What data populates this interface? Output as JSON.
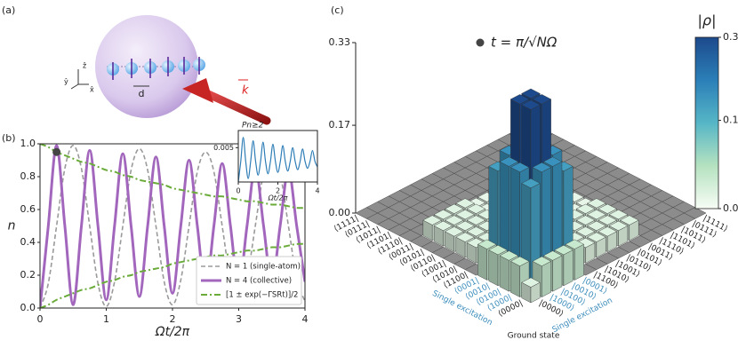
{
  "diagram": {
    "panel_label": "(a)",
    "spacing_label": "d",
    "wavevector_label": "k",
    "axis_labels": [
      "ẑ",
      "ŷ",
      "x̂"
    ]
  },
  "chart_data": [
    {
      "type": "line",
      "panel_label": "(b)",
      "xlabel": "Ωt/2π",
      "ylabel": "n",
      "xlim": [
        0,
        4
      ],
      "ylim": [
        0,
        1
      ],
      "xticks": [
        0,
        1,
        2,
        3,
        4
      ],
      "yticks": [
        {
          "value": 0,
          "label": "0.0"
        },
        {
          "value": 0.2,
          "label": "0.2"
        },
        {
          "value": 0.4,
          "label": "0.4"
        },
        {
          "value": 0.6,
          "label": "0.6"
        },
        {
          "value": 0.8,
          "label": "0.8"
        },
        {
          "value": 1,
          "label": "1.0"
        }
      ],
      "legend": "lower right",
      "x": [
        0,
        0.125,
        0.25,
        0.375,
        0.5,
        0.625,
        0.75,
        0.875,
        1,
        1.125,
        1.25,
        1.375,
        1.5,
        1.625,
        1.75,
        1.875,
        2,
        2.125,
        2.25,
        2.375,
        2.5,
        2.625,
        2.75,
        2.875,
        3,
        3.125,
        3.25,
        3.375,
        3.5,
        3.625,
        3.75,
        3.875,
        4
      ],
      "series": [
        {
          "name": "N = 1 (single-atom)",
          "color": "#9a9a9a",
          "style": "dashed",
          "width": 1.6,
          "values": [
            0,
            0.15,
            0.5,
            0.85,
            0.99,
            0.85,
            0.5,
            0.15,
            0.01,
            0.16,
            0.5,
            0.84,
            0.97,
            0.84,
            0.5,
            0.16,
            0.02,
            0.17,
            0.5,
            0.83,
            0.95,
            0.83,
            0.5,
            0.17,
            0.03,
            0.18,
            0.5,
            0.82,
            0.93,
            0.82,
            0.5,
            0.18,
            0.04
          ]
        },
        {
          "name": "N = 4 (collective)",
          "color": "#a266bd",
          "style": "solid",
          "width": 3,
          "values": [
            0,
            0.5,
            0.99,
            0.5,
            0.02,
            0.5,
            0.96,
            0.5,
            0.05,
            0.5,
            0.94,
            0.5,
            0.07,
            0.5,
            0.92,
            0.5,
            0.09,
            0.5,
            0.9,
            0.5,
            0.11,
            0.5,
            0.88,
            0.5,
            0.13,
            0.5,
            0.86,
            0.5,
            0.15,
            0.5,
            0.84,
            0.5,
            0.16
          ]
        },
        {
          "name": "[1 ± exp(−ΓSRt)]/2",
          "color": "#6aab3a",
          "style": "dashdot",
          "width": 2,
          "values": [
            1,
            0.98,
            0.95,
            0.93,
            0.91,
            0.89,
            0.88,
            0.86,
            0.84,
            0.83,
            0.81,
            0.8,
            0.78,
            0.77,
            0.76,
            0.75,
            0.73,
            0.72,
            0.71,
            0.7,
            0.69,
            0.68,
            0.68,
            0.67,
            0.66,
            0.65,
            0.65,
            0.64,
            0.63,
            0.63,
            0.62,
            0.61,
            0.61
          ],
          "lower_values": [
            0,
            0.02,
            0.05,
            0.07,
            0.09,
            0.11,
            0.12,
            0.14,
            0.16,
            0.17,
            0.19,
            0.2,
            0.22,
            0.23,
            0.24,
            0.25,
            0.27,
            0.28,
            0.29,
            0.3,
            0.31,
            0.32,
            0.32,
            0.33,
            0.34,
            0.35,
            0.35,
            0.36,
            0.37,
            0.37,
            0.38,
            0.39,
            0.39
          ]
        }
      ],
      "marker": {
        "x": 0.25,
        "y": 0.95,
        "color": "#444444"
      }
    },
    {
      "type": "line",
      "title": "Pn≥2",
      "xlabel": "Ωt/2π",
      "xlim": [
        0,
        4
      ],
      "ylim": [
        0,
        0.0075
      ],
      "xticks": [
        0,
        2,
        4
      ],
      "yticks": [
        0.005
      ],
      "x": [
        0,
        0.125,
        0.25,
        0.375,
        0.5,
        0.625,
        0.75,
        0.875,
        1,
        1.125,
        1.25,
        1.375,
        1.5,
        1.625,
        1.75,
        1.875,
        2,
        2.125,
        2.25,
        2.375,
        2.5,
        2.625,
        2.75,
        2.875,
        3,
        3.125,
        3.25,
        3.375,
        3.5,
        3.625,
        3.75,
        3.875,
        4
      ],
      "series": [
        {
          "color": "#2e7db6",
          "style": "solid",
          "width": 1.2,
          "values": [
            0,
            0.003,
            0.0065,
            0.003,
            0.0005,
            0.003,
            0.006,
            0.003,
            0.001,
            0.003,
            0.0058,
            0.003,
            0.0012,
            0.003,
            0.0055,
            0.003,
            0.0014,
            0.003,
            0.0053,
            0.003,
            0.0016,
            0.003,
            0.005,
            0.003,
            0.0018,
            0.003,
            0.0048,
            0.003,
            0.002,
            0.003,
            0.0046,
            0.003,
            0.0022
          ]
        }
      ]
    },
    {
      "type": "bar3d",
      "panel_label": "(c)",
      "title": "t = π/√NΩ",
      "row_labels": [
        "⟨0000|",
        "⟨1000|",
        "⟨0100|",
        "⟨0010|",
        "⟨0001|",
        "⟨1100|",
        "⟨1010|",
        "⟨1001|",
        "⟨0110|",
        "⟨0101|",
        "⟨0011|",
        "⟨1110|",
        "⟨1101|",
        "⟨1011|",
        "⟨0111|",
        "⟨1111|"
      ],
      "col_labels": [
        "|0000⟩",
        "|1000⟩",
        "|0100⟩",
        "|0010⟩",
        "|0001⟩",
        "|1100⟩",
        "|1010⟩",
        "|1001⟩",
        "|0110⟩",
        "|0101⟩",
        "|0011⟩",
        "|1110⟩",
        "|1101⟩",
        "|1011⟩",
        "|0111⟩",
        "|1111⟩"
      ],
      "label_highlight": {
        "color": "#3c8dbc",
        "indices": [
          1,
          2,
          3,
          4
        ]
      },
      "annotations": [
        "Single excitation",
        "Single excitation",
        "Ground state"
      ],
      "zlim": [
        0,
        0.33
      ],
      "zticks": [
        {
          "value": 0,
          "label": "0.00"
        },
        {
          "value": 0.17,
          "label": "0.17"
        },
        {
          "value": 0.33,
          "label": "0.33"
        }
      ],
      "colorbar": {
        "label": "|ρ|",
        "colors": [
          "#f7fcf5",
          "#b5e2c0",
          "#56b6c6",
          "#2b7fb8",
          "#1d4a8c"
        ]
      },
      "values": [
        [
          0.03,
          0.06,
          0.06,
          0.06,
          0.06,
          0,
          0,
          0,
          0,
          0,
          0,
          0,
          0,
          0,
          0,
          0
        ],
        [
          0.06,
          0.2,
          0.22,
          0.22,
          0.2,
          0.03,
          0.03,
          0.03,
          0.03,
          0.03,
          0.03,
          0,
          0,
          0,
          0,
          0
        ],
        [
          0.06,
          0.22,
          0.33,
          0.33,
          0.22,
          0.03,
          0.03,
          0.03,
          0.03,
          0.03,
          0.03,
          0,
          0,
          0,
          0,
          0
        ],
        [
          0.06,
          0.22,
          0.33,
          0.33,
          0.22,
          0.03,
          0.03,
          0.03,
          0.03,
          0.03,
          0.03,
          0,
          0,
          0,
          0,
          0
        ],
        [
          0.06,
          0.2,
          0.22,
          0.22,
          0.2,
          0.03,
          0.03,
          0.03,
          0.03,
          0.03,
          0.03,
          0,
          0,
          0,
          0,
          0
        ],
        [
          0,
          0.03,
          0.03,
          0.03,
          0.03,
          0.02,
          0.02,
          0.02,
          0.02,
          0.02,
          0.02,
          0,
          0,
          0,
          0,
          0
        ],
        [
          0,
          0.03,
          0.03,
          0.03,
          0.03,
          0.02,
          0.02,
          0.02,
          0.02,
          0.02,
          0.02,
          0,
          0,
          0,
          0,
          0
        ],
        [
          0,
          0.03,
          0.03,
          0.03,
          0.03,
          0.02,
          0.02,
          0.02,
          0.02,
          0.02,
          0.02,
          0,
          0,
          0,
          0,
          0
        ],
        [
          0,
          0.03,
          0.03,
          0.03,
          0.03,
          0.02,
          0.02,
          0.02,
          0.02,
          0.02,
          0.02,
          0,
          0,
          0,
          0,
          0
        ],
        [
          0,
          0.03,
          0.03,
          0.03,
          0.03,
          0.02,
          0.02,
          0.02,
          0.02,
          0.02,
          0.02,
          0,
          0,
          0,
          0,
          0
        ],
        [
          0,
          0.03,
          0.03,
          0.03,
          0.03,
          0.02,
          0.02,
          0.02,
          0.02,
          0.02,
          0.02,
          0,
          0,
          0,
          0,
          0
        ],
        [
          0,
          0,
          0,
          0,
          0,
          0,
          0,
          0,
          0,
          0,
          0,
          0,
          0,
          0,
          0,
          0
        ],
        [
          0,
          0,
          0,
          0,
          0,
          0,
          0,
          0,
          0,
          0,
          0,
          0,
          0,
          0,
          0,
          0
        ],
        [
          0,
          0,
          0,
          0,
          0,
          0,
          0,
          0,
          0,
          0,
          0,
          0,
          0,
          0,
          0,
          0
        ],
        [
          0,
          0,
          0,
          0,
          0,
          0,
          0,
          0,
          0,
          0,
          0,
          0,
          0,
          0,
          0,
          0
        ],
        [
          0,
          0,
          0,
          0,
          0,
          0,
          0,
          0,
          0,
          0,
          0,
          0,
          0,
          0,
          0,
          0
        ]
      ]
    }
  ]
}
